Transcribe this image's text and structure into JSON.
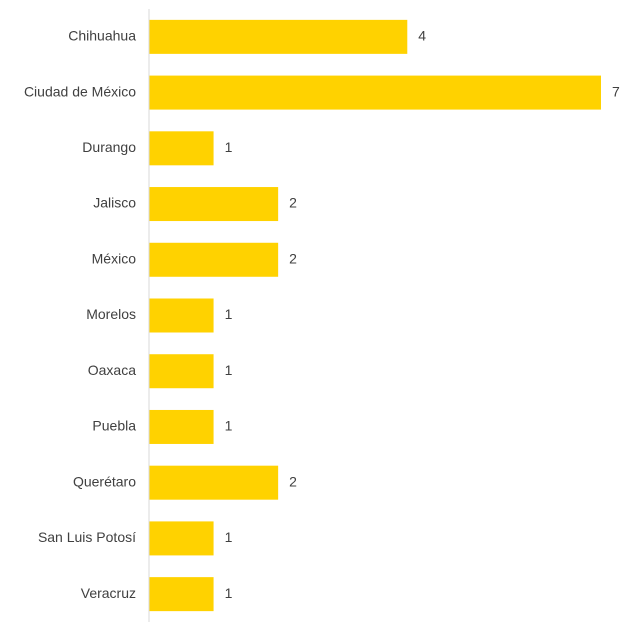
{
  "chart_data": {
    "type": "bar",
    "orientation": "horizontal",
    "categories": [
      "Chihuahua",
      "Ciudad de México",
      "Durango",
      "Jalisco",
      "México",
      "Morelos",
      "Oaxaca",
      "Puebla",
      "Querétaro",
      "San Luis Potosí",
      "Veracruz"
    ],
    "values": [
      4,
      7,
      1,
      2,
      2,
      1,
      1,
      1,
      2,
      1,
      1
    ],
    "title": "",
    "xlabel": "",
    "ylabel": "",
    "xlim": [
      0,
      7
    ],
    "grid": false,
    "legend": "none",
    "data_labels": true,
    "colors": {
      "bar": "#FFD200",
      "axis": "#D9D9D9",
      "text": "#404040"
    }
  }
}
